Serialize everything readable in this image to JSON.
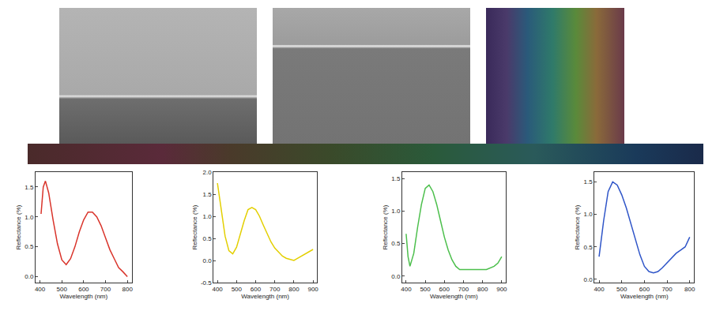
{
  "chart_data": [
    {
      "type": "line",
      "color": "#d9342b",
      "xlabel": "Wavelength (nm)",
      "ylabel": "Reflectance (%)",
      "x": [
        405,
        415,
        425,
        440,
        460,
        480,
        500,
        520,
        540,
        560,
        580,
        600,
        620,
        640,
        660,
        680,
        700,
        720,
        740,
        760,
        780,
        800
      ],
      "values": [
        1.05,
        1.5,
        1.6,
        1.4,
        0.95,
        0.55,
        0.28,
        0.2,
        0.3,
        0.5,
        0.75,
        0.95,
        1.08,
        1.08,
        1.0,
        0.85,
        0.65,
        0.45,
        0.3,
        0.15,
        0.08,
        0.0
      ],
      "xlim": [
        380,
        820
      ],
      "xticks": [
        400,
        500,
        600,
        700,
        800
      ],
      "ylim": [
        -0.1,
        1.75
      ],
      "yticks": [
        {
          "value": 0,
          "label": "0.0"
        },
        0.5,
        {
          "value": 1,
          "label": "1.0"
        },
        1.5
      ]
    },
    {
      "type": "line",
      "color": "#e3cf00",
      "xlabel": "Wavelength (nm)",
      "ylabel": "Reflectance (%)",
      "x": [
        400,
        420,
        440,
        460,
        480,
        500,
        520,
        540,
        560,
        580,
        600,
        620,
        640,
        660,
        680,
        700,
        720,
        740,
        760,
        780,
        800,
        820,
        840,
        860,
        880,
        900
      ],
      "values": [
        1.75,
        1.1,
        0.55,
        0.22,
        0.15,
        0.3,
        0.6,
        0.9,
        1.15,
        1.2,
        1.15,
        1.0,
        0.8,
        0.6,
        0.42,
        0.28,
        0.18,
        0.1,
        0.05,
        0.02,
        0.0,
        0.05,
        0.1,
        0.15,
        0.2,
        0.25
      ],
      "xlim": [
        380,
        920
      ],
      "xticks": [
        400,
        500,
        600,
        700,
        800,
        900
      ],
      "ylim": [
        -0.5,
        2.0
      ],
      "yticks": [
        -0.5,
        {
          "value": 0,
          "label": "0.0"
        },
        0.5,
        {
          "value": 1,
          "label": "1.0"
        },
        1.5,
        {
          "value": 2,
          "label": "2.0"
        }
      ]
    },
    {
      "type": "line",
      "color": "#4cbf4c",
      "xlabel": "Wavelength (nm)",
      "ylabel": "Reflectance (%)",
      "x": [
        400,
        410,
        420,
        440,
        460,
        480,
        500,
        520,
        540,
        560,
        580,
        600,
        620,
        640,
        660,
        680,
        700,
        740,
        780,
        820,
        860,
        880,
        900
      ],
      "values": [
        0.65,
        0.3,
        0.15,
        0.35,
        0.75,
        1.1,
        1.35,
        1.4,
        1.3,
        1.1,
        0.85,
        0.6,
        0.4,
        0.25,
        0.15,
        0.1,
        0.1,
        0.1,
        0.1,
        0.1,
        0.15,
        0.2,
        0.3
      ],
      "xlim": [
        380,
        920
      ],
      "xticks": [
        400,
        500,
        600,
        700,
        800,
        900
      ],
      "ylim": [
        -0.1,
        1.6
      ],
      "yticks": [
        {
          "value": 0,
          "label": "0.0"
        },
        0.5,
        {
          "value": 1,
          "label": "1.0"
        },
        1.5
      ]
    },
    {
      "type": "line",
      "color": "#2f55c8",
      "xlabel": "Wavelength (nm)",
      "ylabel": "Reflectance (%)",
      "x": [
        400,
        420,
        440,
        460,
        480,
        500,
        520,
        540,
        560,
        580,
        600,
        620,
        640,
        660,
        680,
        700,
        720,
        740,
        760,
        780,
        800
      ],
      "values": [
        0.35,
        0.9,
        1.35,
        1.5,
        1.45,
        1.3,
        1.1,
        0.85,
        0.6,
        0.38,
        0.2,
        0.12,
        0.1,
        0.12,
        0.18,
        0.25,
        0.32,
        0.4,
        0.45,
        0.5,
        0.65
      ],
      "xlim": [
        380,
        820
      ],
      "xticks": [
        400,
        500,
        600,
        700,
        800
      ],
      "ylim": [
        -0.05,
        1.65
      ],
      "yticks": [
        {
          "value": 0,
          "label": "0.0"
        },
        0.5,
        {
          "value": 1,
          "label": "1.0"
        },
        1.5
      ]
    }
  ]
}
